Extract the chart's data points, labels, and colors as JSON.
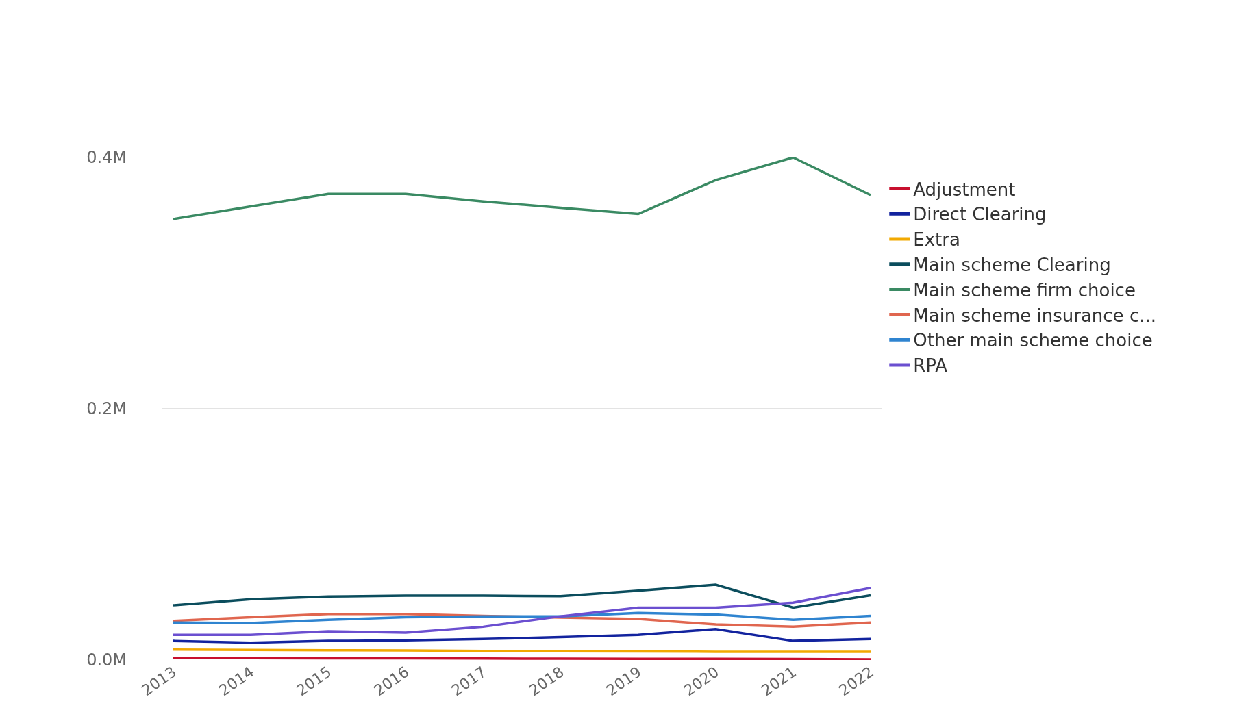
{
  "chart_data": {
    "type": "line",
    "categories": [
      "2013",
      "2014",
      "2015",
      "2016",
      "2017",
      "2018",
      "2019",
      "2020",
      "2021",
      "2022"
    ],
    "series": [
      {
        "name": "Adjustment",
        "color": "#c8102e",
        "values": [
          1500,
          1500,
          1400,
          1300,
          1200,
          1100,
          1000,
          900,
          800,
          600
        ]
      },
      {
        "name": "Direct Clearing",
        "color": "#12239e",
        "values": [
          15200,
          13800,
          15200,
          15600,
          16700,
          18200,
          20000,
          24700,
          15200,
          16700
        ]
      },
      {
        "name": "Extra",
        "color": "#f2a900",
        "values": [
          8300,
          8000,
          7800,
          7600,
          7200,
          7000,
          6800,
          6600,
          6500,
          6500
        ]
      },
      {
        "name": "Main scheme Clearing",
        "color": "#0b4d5d",
        "values": [
          43600,
          48300,
          50500,
          51200,
          51200,
          50800,
          55200,
          59900,
          41700,
          51500
        ]
      },
      {
        "name": "Main scheme firm choice",
        "color": "#3a8a63",
        "values": [
          351000,
          361000,
          371000,
          371000,
          365000,
          360000,
          355000,
          382000,
          400000,
          370000
        ]
      },
      {
        "name": "Main scheme insurance c...",
        "color": "#e0664f",
        "values": [
          31200,
          34000,
          36700,
          36700,
          35200,
          33800,
          32700,
          28300,
          26500,
          29800
        ]
      },
      {
        "name": "Other main scheme choice",
        "color": "#2f84d0",
        "values": [
          29800,
          29400,
          32000,
          34000,
          34800,
          34800,
          37400,
          36300,
          32000,
          35200
        ]
      },
      {
        "name": "RPA",
        "color": "#6b4fd0",
        "values": [
          20000,
          20000,
          22900,
          21800,
          26500,
          34800,
          41700,
          41700,
          45700,
          57400
        ]
      }
    ],
    "ylim": [
      0,
      400000
    ],
    "yticks": [
      {
        "value": 0,
        "label": "0.0M"
      },
      {
        "value": 200000,
        "label": "0.2M"
      },
      {
        "value": 400000,
        "label": "0.4M"
      }
    ],
    "grid": "y",
    "legend": "right",
    "marker": "none",
    "line_style": "solid"
  }
}
